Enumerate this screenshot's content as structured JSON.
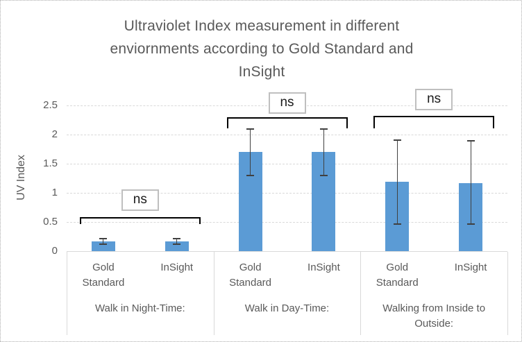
{
  "chart_data": {
    "type": "bar",
    "title": "Ultraviolet Index measurement in different enviornments according to Gold Standard and InSight",
    "title_lines": [
      "Ultraviolet Index measurement in different",
      "enviornments according to Gold Standard and",
      "InSight"
    ],
    "ylabel": "UV Index",
    "xlabel": "",
    "ylim": [
      0,
      2.5
    ],
    "grid": true,
    "legend": "none",
    "yticks": [
      {
        "value": 2.5,
        "label": "2.5"
      },
      {
        "value": 2,
        "label": "2"
      },
      {
        "value": 1.5,
        "label": "1.5"
      },
      {
        "value": 1,
        "label": "1"
      },
      {
        "value": 0.5,
        "label": "0.5"
      },
      {
        "value": 0,
        "label": "0"
      }
    ],
    "groups": [
      {
        "label": "Walk in Night-Time:",
        "bars": [
          {
            "category": "Gold Standard",
            "value": 0.17,
            "err_low": 0.12,
            "err_high": 0.22
          },
          {
            "category": "InSight",
            "value": 0.17,
            "err_low": 0.12,
            "err_high": 0.22
          }
        ],
        "significance": {
          "label": "ns",
          "bracket_top": 0.58,
          "bracket_tick_bottom": 0.46,
          "label_center": 0.88
        }
      },
      {
        "label": "Walk in Day-Time:",
        "bars": [
          {
            "category": "Gold Standard",
            "value": 1.7,
            "err_low": 1.3,
            "err_high": 2.1
          },
          {
            "category": "InSight",
            "value": 1.7,
            "err_low": 1.3,
            "err_high": 2.1
          }
        ],
        "significance": {
          "label": "ns",
          "bracket_top": 2.3,
          "bracket_tick_bottom": 2.11,
          "label_center": 2.54
        }
      },
      {
        "label": "Walking from Inside to Outside:",
        "bars": [
          {
            "category": "Gold Standard",
            "value": 1.19,
            "err_low": 0.47,
            "err_high": 1.91
          },
          {
            "category": "InSight",
            "value": 1.17,
            "err_low": 0.46,
            "err_high": 1.89
          }
        ],
        "significance": {
          "label": "ns",
          "bracket_top": 2.32,
          "bracket_tick_bottom": 2.11,
          "label_center": 2.6
        }
      }
    ],
    "colors": {
      "bar": "#5b9bd5",
      "error_bar": "#404040",
      "bracket": "#000000",
      "grid": "#d9d9d9",
      "text": "#595959",
      "sig_box_border": "#bfbfbf"
    }
  }
}
